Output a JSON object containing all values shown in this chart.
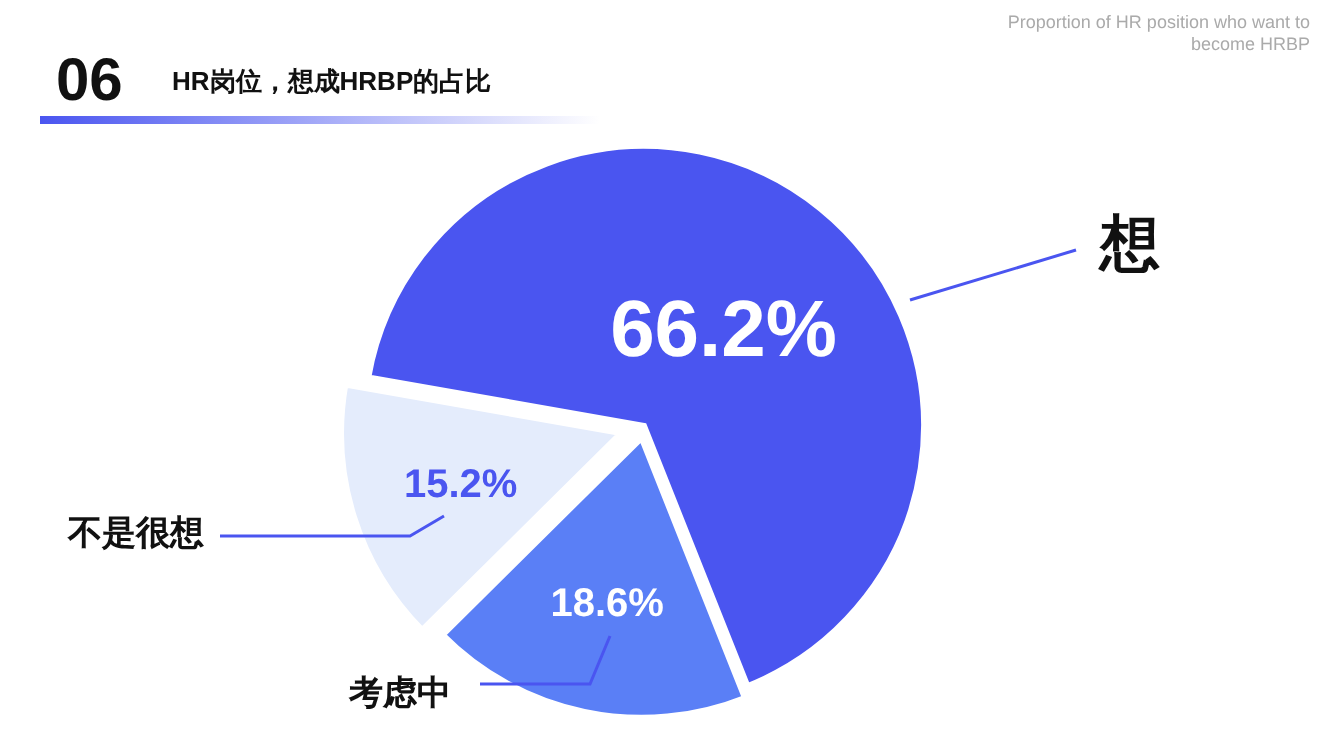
{
  "chart_data": {
    "type": "pie",
    "title": "HR岗位，想成HRBP的占比",
    "subtitle": "Proportion of HR position who want to become HRBP",
    "annotations": [
      "06"
    ],
    "categories": [
      "想",
      "考虑中",
      "不是很想"
    ],
    "values": [
      66.2,
      18.6,
      15.2
    ],
    "colors": [
      "#4a55f0",
      "#5a7ff6",
      "#e4ecfc"
    ],
    "value_labels": [
      "66.2%",
      "18.6%",
      "15.2%"
    ]
  }
}
